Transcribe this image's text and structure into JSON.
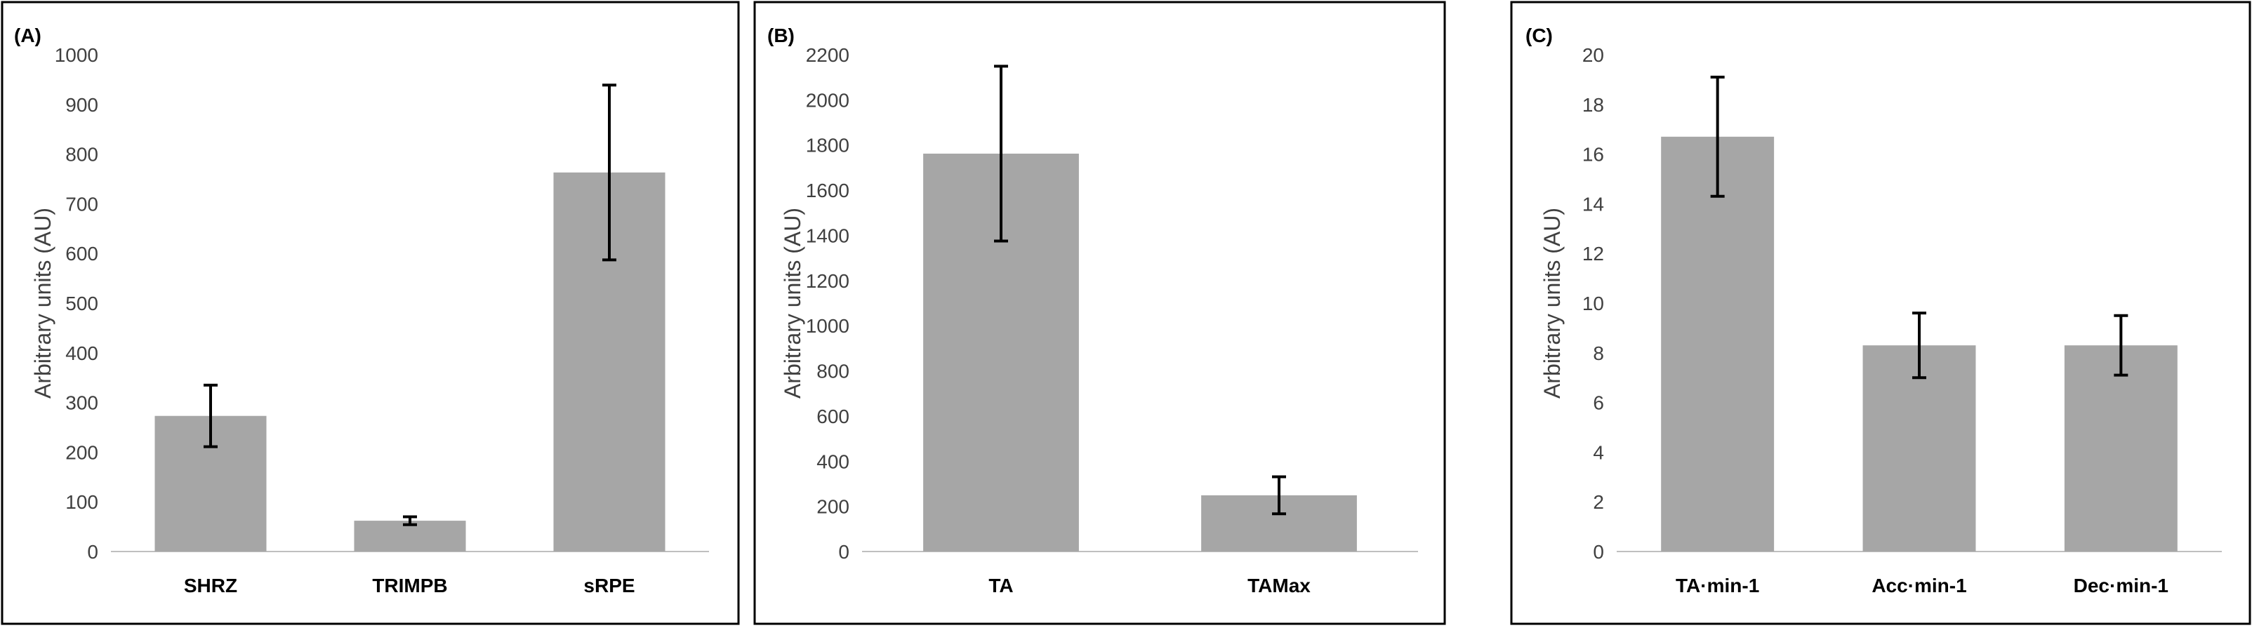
{
  "chart_data": [
    {
      "type": "bar",
      "panel": "(A)",
      "ylabel": "Arbitrary units (AU)",
      "ylim": [
        0,
        1000
      ],
      "yticks": [
        0,
        100,
        200,
        300,
        400,
        500,
        600,
        700,
        800,
        900,
        1000
      ],
      "categories": [
        "SHRZ",
        "TRIMPB",
        "sRPE"
      ],
      "values": [
        273,
        62,
        763
      ],
      "error": [
        62,
        8,
        176
      ],
      "bar_color": "#a6a6a6",
      "grid": false
    },
    {
      "type": "bar",
      "panel": "(B)",
      "ylabel": "Arbitrary units (AU)",
      "ylim": [
        0,
        2200
      ],
      "yticks": [
        0,
        200,
        400,
        600,
        800,
        1000,
        1200,
        1400,
        1600,
        1800,
        2000,
        2200
      ],
      "categories": [
        "TA",
        "TAMax"
      ],
      "values": [
        1762,
        249
      ],
      "error": [
        387,
        82
      ],
      "bar_color": "#a6a6a6",
      "grid": false
    },
    {
      "type": "bar",
      "panel": "(C)",
      "ylabel": "Arbitrary units (AU)",
      "ylim": [
        0,
        20
      ],
      "yticks": [
        0,
        2,
        4,
        6,
        8,
        10,
        12,
        14,
        16,
        18,
        20
      ],
      "categories": [
        "TA·min-1",
        "Acc·min-1",
        "Dec·min-1"
      ],
      "values": [
        16.7,
        8.3,
        8.3
      ],
      "error": [
        2.4,
        1.3,
        1.2
      ],
      "bar_color": "#a6a6a6",
      "grid": false
    }
  ]
}
